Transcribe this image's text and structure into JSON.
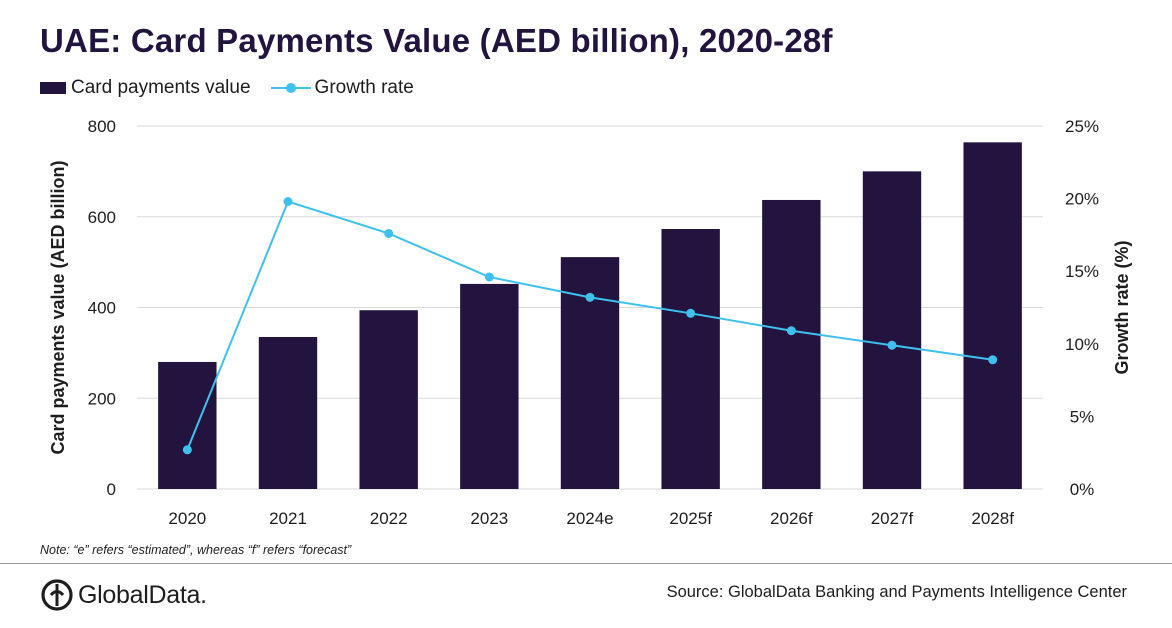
{
  "title": "UAE: Card Payments Value (AED billion), 2020-28f",
  "legend": {
    "bar_label": "Card payments value",
    "line_label": "Growth rate"
  },
  "note": "Note: “e” refers “estimated”, whereas “f” refers “forecast”",
  "footer": {
    "logo_text": "GlobalData.",
    "source": "Source: GlobalData Banking and Payments Intelligence Center"
  },
  "colors": {
    "bar": "#22143f",
    "line": "#3ec1ef",
    "grid": "#d9d9d9"
  },
  "chart_data": {
    "type": "bar",
    "title": "UAE: Card Payments Value (AED billion), 2020-28f",
    "categories": [
      "2020",
      "2021",
      "2022",
      "2023",
      "2024e",
      "2025f",
      "2026f",
      "2027f",
      "2028f"
    ],
    "series": [
      {
        "name": "Card payments value",
        "type": "bar",
        "axis": "left",
        "values": [
          280,
          335,
          394,
          452,
          511,
          573,
          637,
          700,
          764
        ]
      },
      {
        "name": "Growth rate",
        "type": "line",
        "axis": "right",
        "values": [
          2.7,
          19.8,
          17.6,
          14.6,
          13.2,
          12.1,
          10.9,
          9.9,
          8.9
        ]
      }
    ],
    "ylabel": "Card payments value (AED billion)",
    "ylim": [
      0,
      800
    ],
    "yticks": [
      "0",
      "200",
      "400",
      "600",
      "800"
    ],
    "y2label": "Growth rate (%)",
    "y2lim": [
      0,
      25
    ],
    "y2ticks": [
      "0%",
      "5%",
      "10%",
      "15%",
      "20%",
      "25%"
    ],
    "grid": true,
    "legend_position": "top-left"
  }
}
